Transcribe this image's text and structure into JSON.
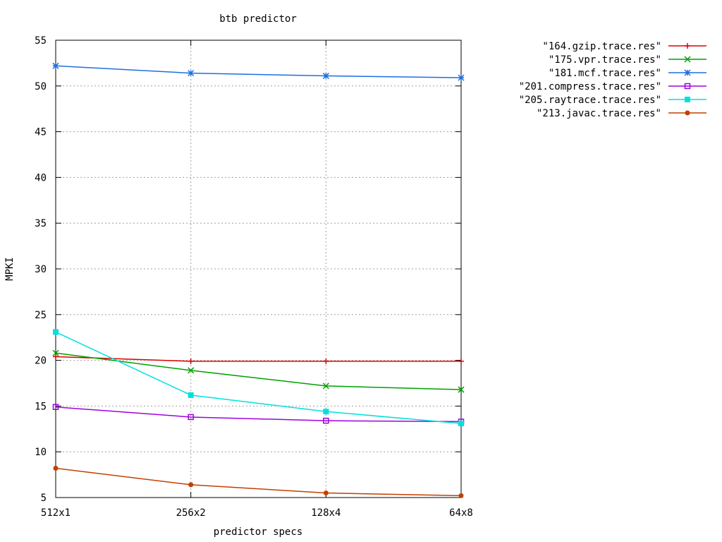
{
  "chart_data": {
    "type": "line",
    "title": "btb predictor",
    "xlabel": "predictor specs",
    "ylabel": "MPKI",
    "categories": [
      "512x1",
      "256x2",
      "128x4",
      "64x8"
    ],
    "ylim": [
      5,
      55
    ],
    "yticks": [
      5,
      10,
      15,
      20,
      25,
      30,
      35,
      40,
      45,
      50,
      55
    ],
    "grid": true,
    "legend_position": "top-right, outside plot",
    "series": [
      {
        "name": "\"164.gzip.trace.res\"",
        "color": "#e00000",
        "marker": "plus",
        "values": [
          20.4,
          19.9,
          19.9,
          19.9
        ]
      },
      {
        "name": "\"175.vpr.trace.res\"",
        "color": "#00a000",
        "marker": "cross",
        "values": [
          20.8,
          18.9,
          17.2,
          16.8
        ]
      },
      {
        "name": "\"181.mcf.trace.res\"",
        "color": "#1e6fe0",
        "marker": "star",
        "values": [
          52.2,
          51.4,
          51.1,
          50.9
        ]
      },
      {
        "name": "\"201.compress.trace.res\"",
        "color": "#a000e0",
        "marker": "open-square",
        "values": [
          14.9,
          13.8,
          13.4,
          13.3
        ]
      },
      {
        "name": "\"205.raytrace.trace.res\"",
        "color": "#00e0e0",
        "marker": "filled-square",
        "values": [
          23.1,
          16.2,
          14.4,
          13.1
        ]
      },
      {
        "name": "\"213.javac.trace.res\"",
        "color": "#c04000",
        "marker": "filled-circle",
        "values": [
          8.2,
          6.4,
          5.5,
          5.2
        ]
      }
    ]
  }
}
